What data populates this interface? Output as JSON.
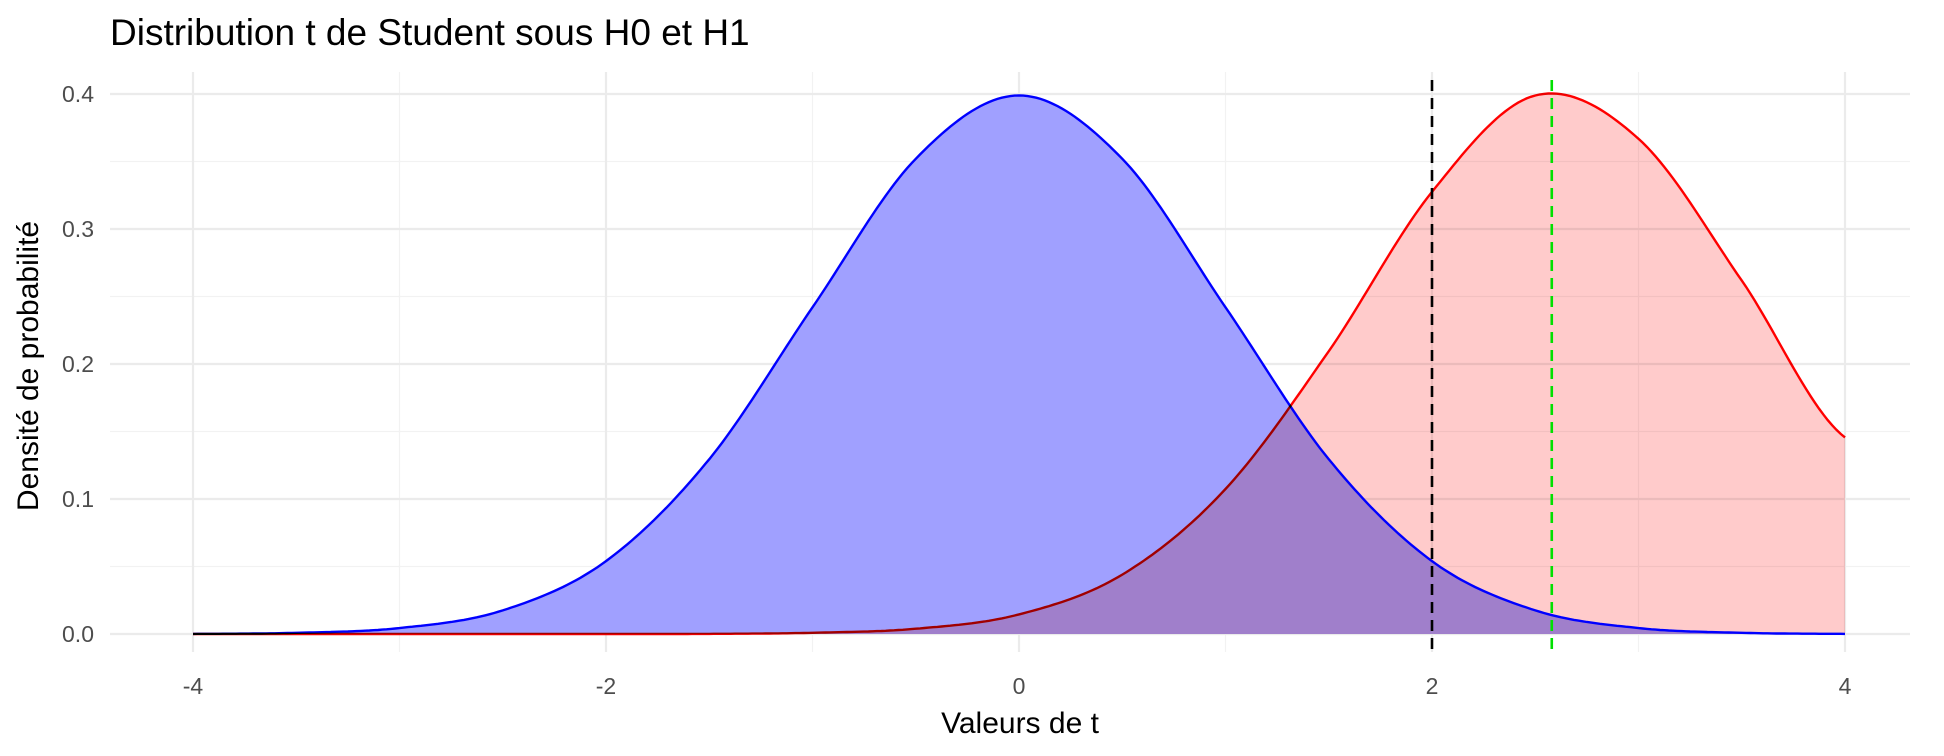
{
  "chart_data": {
    "type": "area",
    "title": "Distribution t de Student sous H0 et H1",
    "xlabel": "Valeurs de t",
    "ylabel": "Densité de probabilité",
    "xlim": [
      -4,
      4
    ],
    "ylim": [
      0,
      0.4
    ],
    "x_ticks": [
      -4,
      -2,
      0,
      2,
      4
    ],
    "y_ticks": [
      0.0,
      0.1,
      0.2,
      0.3,
      0.4
    ],
    "y_tick_labels": [
      "0.0",
      "0.1",
      "0.2",
      "0.3",
      "0.4"
    ],
    "grid": true,
    "legend": "none",
    "series": [
      {
        "color": "#0000ff",
        "fill": "#a0a0ff",
        "x": [
          -4,
          -3.5,
          -3,
          -2.5,
          -2,
          -1.5,
          -1,
          -0.5,
          0,
          0.5,
          1,
          1.5,
          2,
          2.5,
          3,
          3.5,
          4
        ],
        "values": [
          0.0001,
          0.0009,
          0.0044,
          0.0175,
          0.054,
          0.1295,
          0.242,
          0.352,
          0.3989,
          0.352,
          0.242,
          0.1295,
          0.054,
          0.0175,
          0.0044,
          0.0009,
          0.0001
        ]
      },
      {
        "color": "#ff0000",
        "fill": "#ffc8c8",
        "x": [
          -4,
          -3.5,
          -3,
          -2.5,
          -2,
          -1.5,
          -1,
          -0.5,
          0,
          0.5,
          1,
          1.5,
          2,
          2.5,
          3,
          3.5,
          4
        ],
        "values": [
          0.0,
          0.0,
          0.0,
          0.0,
          0.0,
          0.0001,
          0.0009,
          0.0039,
          0.0145,
          0.044,
          0.1074,
          0.2095,
          0.3275,
          0.3989,
          0.3668,
          0.2618,
          0.1456
        ]
      }
    ],
    "vlines": [
      {
        "x": 2,
        "color": "#000000",
        "style": "dashed"
      },
      {
        "x": 2.58,
        "color": "#00e000",
        "style": "dashed"
      }
    ]
  }
}
